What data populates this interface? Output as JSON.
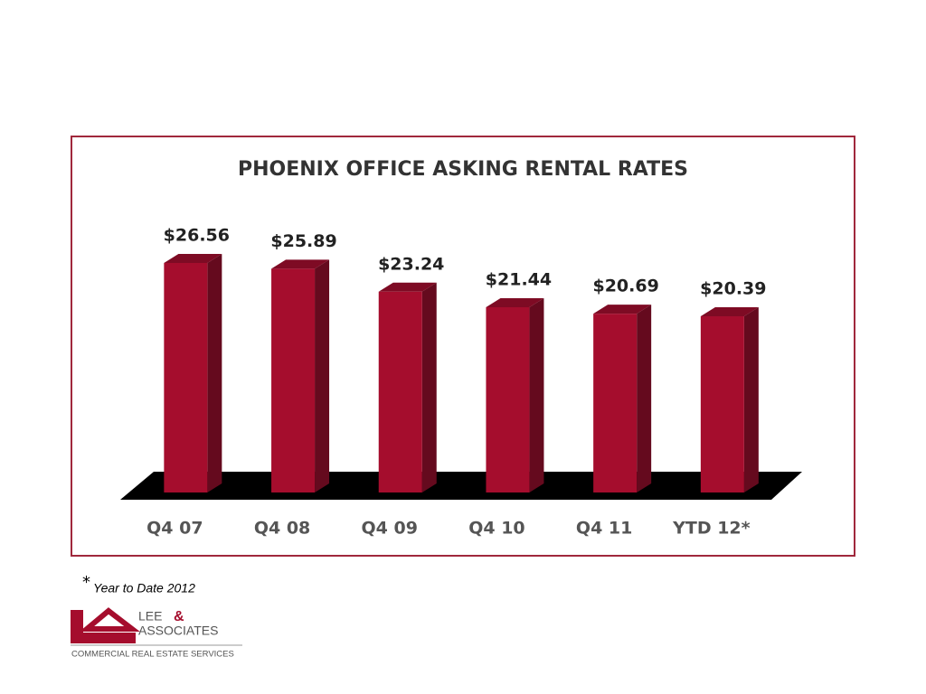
{
  "chart_data": {
    "type": "bar3d",
    "title": "PHOENIX OFFICE ASKING RENTAL RATES",
    "categories": [
      "Q4 07",
      "Q4 08",
      "Q4 09",
      "Q4 10",
      "Q4 11",
      "YTD 12*"
    ],
    "values": [
      26.56,
      25.89,
      23.24,
      21.44,
      20.69,
      20.39
    ],
    "value_labels": [
      "$26.56",
      "$25.89",
      "$23.24",
      "$21.44",
      "$20.69",
      "$20.39"
    ],
    "color": "#a50d2d"
  },
  "footnote": {
    "mark": "*",
    "text": "Year to Date 2012"
  },
  "logo": {
    "name1": "LEE",
    "amp": "&",
    "name2": "ASSOCIATES",
    "tagline": "COMMERCIAL REAL ESTATE SERVICES"
  }
}
